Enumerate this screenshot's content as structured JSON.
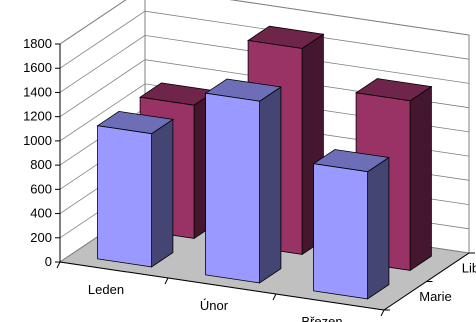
{
  "chart_data": {
    "type": "bar",
    "title": "",
    "xlabel": "",
    "ylabel": "",
    "ylim": [
      0,
      1800
    ],
    "yticks": [
      0,
      200,
      400,
      600,
      800,
      1000,
      1200,
      1400,
      1600,
      1800
    ],
    "grid": true,
    "categories": [
      "Leden",
      "Únor",
      "Březen"
    ],
    "series": [
      {
        "name": "Marie",
        "values": [
          1100,
          1500,
          1050
        ],
        "color": "#9999ff"
      },
      {
        "name": "Libuše",
        "values": [
          1100,
          1700,
          1400
        ],
        "color": "#993366"
      }
    ]
  }
}
